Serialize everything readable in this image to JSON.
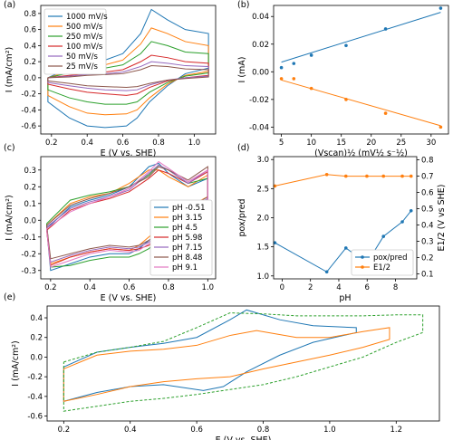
{
  "chart_data": [
    {
      "panel": "(a)",
      "type": "line",
      "xlabel": "E (V vs. SHE)",
      "ylabel": "I (mA/cm²)",
      "legend": "upper left",
      "xlim": [
        0.14,
        1.12
      ],
      "xticks": [
        0.2,
        0.4,
        0.6,
        0.8,
        {
          "value": 1,
          "label": "1.0"
        }
      ],
      "ylim": [
        -0.7,
        0.9
      ],
      "yticks": [
        -0.6,
        -0.4,
        -0.2,
        {
          "value": 0,
          "label": "0.0"
        },
        0.2,
        0.4,
        0.6,
        0.8
      ],
      "x": [
        0.18,
        0.3,
        0.4,
        0.5,
        0.6,
        0.7,
        0.76,
        0.85,
        0.95,
        1.08,
        1.08,
        0.95,
        0.85,
        0.75,
        0.68,
        0.62,
        0.5,
        0.4,
        0.3,
        0.18,
        0.18
      ],
      "series": [
        {
          "name": "1000 mV/s",
          "color": "#1f77b4",
          "values": [
            0.0,
            0.12,
            0.17,
            0.22,
            0.3,
            0.55,
            0.85,
            0.72,
            0.6,
            0.55,
            0.12,
            0.05,
            -0.1,
            -0.3,
            -0.5,
            -0.6,
            -0.62,
            -0.6,
            -0.5,
            -0.3,
            0.0
          ]
        },
        {
          "name": "500 mV/s",
          "color": "#ff7f0e",
          "values": [
            0.0,
            0.08,
            0.12,
            0.16,
            0.22,
            0.42,
            0.62,
            0.55,
            0.45,
            0.4,
            0.08,
            0.03,
            -0.08,
            -0.25,
            -0.4,
            -0.45,
            -0.46,
            -0.44,
            -0.36,
            -0.22,
            0.0
          ]
        },
        {
          "name": "250 mV/s",
          "color": "#2ca02c",
          "values": [
            0.0,
            0.06,
            0.09,
            0.12,
            0.16,
            0.3,
            0.45,
            0.4,
            0.32,
            0.3,
            0.06,
            0.02,
            -0.06,
            -0.18,
            -0.3,
            -0.33,
            -0.33,
            -0.3,
            -0.25,
            -0.15,
            0.0
          ]
        },
        {
          "name": "100 mV/s",
          "color": "#d62728",
          "values": [
            0.0,
            0.03,
            0.05,
            0.07,
            0.1,
            0.2,
            0.28,
            0.25,
            0.2,
            0.18,
            0.03,
            0.0,
            -0.04,
            -0.12,
            -0.2,
            -0.22,
            -0.2,
            -0.18,
            -0.14,
            -0.08,
            0.0
          ]
        },
        {
          "name": "50 mV/s",
          "color": "#9467bd",
          "values": [
            0.0,
            0.02,
            0.04,
            0.05,
            0.07,
            0.14,
            0.2,
            0.18,
            0.15,
            0.14,
            0.02,
            0.0,
            -0.03,
            -0.09,
            -0.15,
            -0.16,
            -0.15,
            -0.13,
            -0.1,
            -0.06,
            0.0
          ]
        },
        {
          "name": "25 mV/s",
          "color": "#8c564b",
          "values": [
            0.0,
            0.01,
            0.03,
            0.04,
            0.05,
            0.1,
            0.15,
            0.14,
            0.11,
            0.1,
            0.01,
            -0.01,
            -0.03,
            -0.07,
            -0.11,
            -0.12,
            -0.11,
            -0.1,
            -0.07,
            -0.04,
            0.0
          ]
        }
      ]
    },
    {
      "panel": "(b)",
      "type": "scatter",
      "xlabel": "(Vscan)½ (mV½ s⁻½)",
      "ylabel": "I (mA)",
      "xlim": [
        3.7,
        32.9
      ],
      "xticks": [
        5,
        10,
        15,
        20,
        25,
        30
      ],
      "ylim": [
        -0.045,
        0.048
      ],
      "yticks": [
        -0.04,
        -0.02,
        {
          "value": 0,
          "label": "0.00"
        },
        0.02,
        0.04
      ],
      "x": [
        5,
        7.07,
        10,
        15.8,
        22.4,
        31.6
      ],
      "fit_x": [
        5,
        31.6
      ],
      "series": [
        {
          "color": "#1f77b4",
          "values": [
            0.003,
            0.006,
            0.012,
            0.019,
            0.031,
            0.046
          ],
          "fit": [
            0.007,
            0.043
          ]
        },
        {
          "color": "#ff7f0e",
          "values": [
            -0.005,
            -0.005,
            -0.012,
            -0.02,
            -0.03,
            -0.04
          ],
          "fit": [
            -0.006,
            -0.039
          ]
        }
      ]
    },
    {
      "panel": "(c)",
      "type": "line",
      "xlabel": "E (V vs. SHE)",
      "ylabel": "I (mA/cm²)",
      "legend": "lower right",
      "xlim": [
        0.15,
        1.04
      ],
      "xticks": [
        0.2,
        0.4,
        0.6,
        0.8,
        {
          "value": 1,
          "label": "1.0"
        }
      ],
      "ylim": [
        -0.35,
        0.38
      ],
      "yticks": [
        -0.3,
        -0.2,
        -0.1,
        {
          "value": 0,
          "label": "0.0"
        },
        0.1,
        0.2,
        0.3
      ],
      "x": [
        0.18,
        0.3,
        0.4,
        0.5,
        0.6,
        0.7,
        0.75,
        0.8,
        0.9,
        1.0,
        1.0,
        0.9,
        0.8,
        0.7,
        0.65,
        0.6,
        0.5,
        0.4,
        0.3,
        0.2,
        0.18
      ],
      "series": [
        {
          "name": "pH -0.51",
          "color": "#1f77b4",
          "values": [
            -0.05,
            0.08,
            0.12,
            0.15,
            0.2,
            0.32,
            0.34,
            0.28,
            0.2,
            0.25,
            0.12,
            0.06,
            -0.03,
            -0.12,
            -0.17,
            -0.2,
            -0.2,
            -0.22,
            -0.26,
            -0.3,
            -0.05
          ]
        },
        {
          "name": "pH 3.15",
          "color": "#ff7f0e",
          "values": [
            -0.03,
            0.1,
            0.14,
            0.16,
            0.22,
            0.3,
            0.3,
            0.26,
            0.2,
            0.27,
            0.14,
            0.08,
            0.0,
            -0.1,
            -0.15,
            -0.18,
            -0.17,
            -0.19,
            -0.22,
            -0.26,
            -0.03
          ]
        },
        {
          "name": "pH 4.5",
          "color": "#2ca02c",
          "values": [
            -0.02,
            0.12,
            0.15,
            0.17,
            0.2,
            0.27,
            0.33,
            0.3,
            0.22,
            0.25,
            0.12,
            0.05,
            -0.05,
            -0.17,
            -0.2,
            -0.22,
            -0.22,
            -0.24,
            -0.27,
            -0.28,
            -0.02
          ]
        },
        {
          "name": "pH 5.98",
          "color": "#d62728",
          "values": [
            -0.06,
            0.06,
            0.1,
            0.13,
            0.17,
            0.25,
            0.3,
            0.28,
            0.22,
            0.29,
            0.1,
            0.04,
            -0.05,
            -0.15,
            -0.17,
            -0.18,
            -0.17,
            -0.19,
            -0.22,
            -0.27,
            -0.06
          ]
        },
        {
          "name": "pH 7.15",
          "color": "#9467bd",
          "values": [
            -0.04,
            0.07,
            0.11,
            0.14,
            0.18,
            0.28,
            0.33,
            0.3,
            0.22,
            0.3,
            0.13,
            0.06,
            -0.03,
            -0.13,
            -0.16,
            -0.17,
            -0.16,
            -0.18,
            -0.21,
            -0.25,
            -0.04
          ]
        },
        {
          "name": "pH 8.48",
          "color": "#8c564b",
          "values": [
            -0.03,
            0.09,
            0.13,
            0.16,
            0.2,
            0.26,
            0.32,
            0.3,
            0.24,
            0.32,
            0.14,
            0.07,
            -0.02,
            -0.12,
            -0.15,
            -0.16,
            -0.15,
            -0.17,
            -0.2,
            -0.23,
            -0.03
          ]
        },
        {
          "name": "pH 9.1",
          "color": "#e377c2",
          "values": [
            -0.05,
            0.05,
            0.1,
            0.14,
            0.19,
            0.29,
            0.35,
            0.31,
            0.23,
            0.3,
            0.11,
            0.05,
            -0.04,
            -0.14,
            -0.18,
            -0.19,
            -0.18,
            -0.2,
            -0.24,
            -0.28,
            -0.05
          ]
        }
      ]
    },
    {
      "panel": "(d)",
      "type": "line",
      "markers": true,
      "xlabel": "pH",
      "ylabel": "pox/pred",
      "y2label": "E1/2 (V vs SHE)",
      "legend": "lower right",
      "xlim": [
        -0.6,
        9.5
      ],
      "xticks": [
        0,
        2,
        4,
        6,
        8
      ],
      "ylim": [
        0.95,
        3.05
      ],
      "yticks": [
        {
          "value": 1,
          "label": "1.0"
        },
        1.5,
        {
          "value": 2,
          "label": "2.0"
        },
        2.5,
        {
          "value": 3,
          "label": "3.0"
        }
      ],
      "y2lim": [
        0.07,
        0.82
      ],
      "y2ticks": [
        0.1,
        0.2,
        0.3,
        0.4,
        0.5,
        0.6,
        0.7,
        0.8
      ],
      "x": [
        -0.51,
        3.15,
        4.5,
        5.98,
        7.15,
        8.48,
        9.1
      ],
      "series": [
        {
          "name": "pox/pred",
          "color": "#1f77b4",
          "values": [
            1.57,
            1.07,
            1.48,
            1.22,
            1.68,
            1.93,
            2.12
          ]
        },
        {
          "name": "E1/2",
          "color": "#ff7f0e",
          "axis": "y2",
          "values": [
            0.64,
            0.71,
            0.7,
            0.7,
            0.7,
            0.7,
            0.7
          ]
        }
      ]
    },
    {
      "panel": "(e)",
      "type": "line",
      "xlabel": "E (V vs. SHE)",
      "ylabel": "I (mA/cm²)",
      "xlim": [
        0.15,
        1.33
      ],
      "xticks": [
        0.2,
        0.4,
        0.6,
        0.8,
        {
          "value": 1,
          "label": "1.0"
        },
        1.2
      ],
      "ylim": [
        -0.65,
        0.52
      ],
      "yticks": [
        -0.6,
        -0.4,
        -0.2,
        {
          "value": 0,
          "label": "0.0"
        },
        0.2,
        0.4
      ],
      "series": [
        {
          "color": "#1f77b4",
          "x": [
            0.2,
            0.3,
            0.4,
            0.5,
            0.6,
            0.7,
            0.75,
            0.85,
            0.95,
            1.08,
            1.08,
            0.95,
            0.85,
            0.75,
            0.68,
            0.62,
            0.5,
            0.4,
            0.3,
            0.2,
            0.2
          ],
          "values": [
            -0.1,
            0.05,
            0.1,
            0.14,
            0.2,
            0.38,
            0.48,
            0.38,
            0.32,
            0.3,
            0.25,
            0.15,
            0.02,
            -0.15,
            -0.3,
            -0.34,
            -0.28,
            -0.3,
            -0.36,
            -0.45,
            -0.1
          ]
        },
        {
          "color": "#ff7f0e",
          "x": [
            0.2,
            0.3,
            0.4,
            0.5,
            0.6,
            0.7,
            0.78,
            0.9,
            1.0,
            1.1,
            1.18,
            1.18,
            1.1,
            1.0,
            0.9,
            0.8,
            0.7,
            0.6,
            0.5,
            0.4,
            0.3,
            0.2,
            0.2
          ],
          "values": [
            -0.12,
            0.02,
            0.06,
            0.08,
            0.12,
            0.22,
            0.27,
            0.2,
            0.2,
            0.26,
            0.3,
            0.18,
            0.1,
            0.02,
            -0.05,
            -0.12,
            -0.2,
            -0.22,
            -0.25,
            -0.3,
            -0.38,
            -0.45,
            -0.12
          ]
        },
        {
          "color": "#2ca02c",
          "dashed": true,
          "x": [
            0.2,
            0.3,
            0.4,
            0.5,
            0.6,
            0.7,
            0.8,
            0.9,
            1.0,
            1.1,
            1.2,
            1.28,
            1.28,
            1.2,
            1.1,
            1.0,
            0.9,
            0.8,
            0.7,
            0.6,
            0.5,
            0.4,
            0.3,
            0.2,
            0.2
          ],
          "values": [
            -0.05,
            0.05,
            0.1,
            0.16,
            0.3,
            0.45,
            0.44,
            0.42,
            0.42,
            0.42,
            0.43,
            0.43,
            0.25,
            0.15,
            0.0,
            -0.1,
            -0.2,
            -0.28,
            -0.33,
            -0.38,
            -0.42,
            -0.45,
            -0.5,
            -0.55,
            -0.05
          ]
        }
      ]
    }
  ]
}
